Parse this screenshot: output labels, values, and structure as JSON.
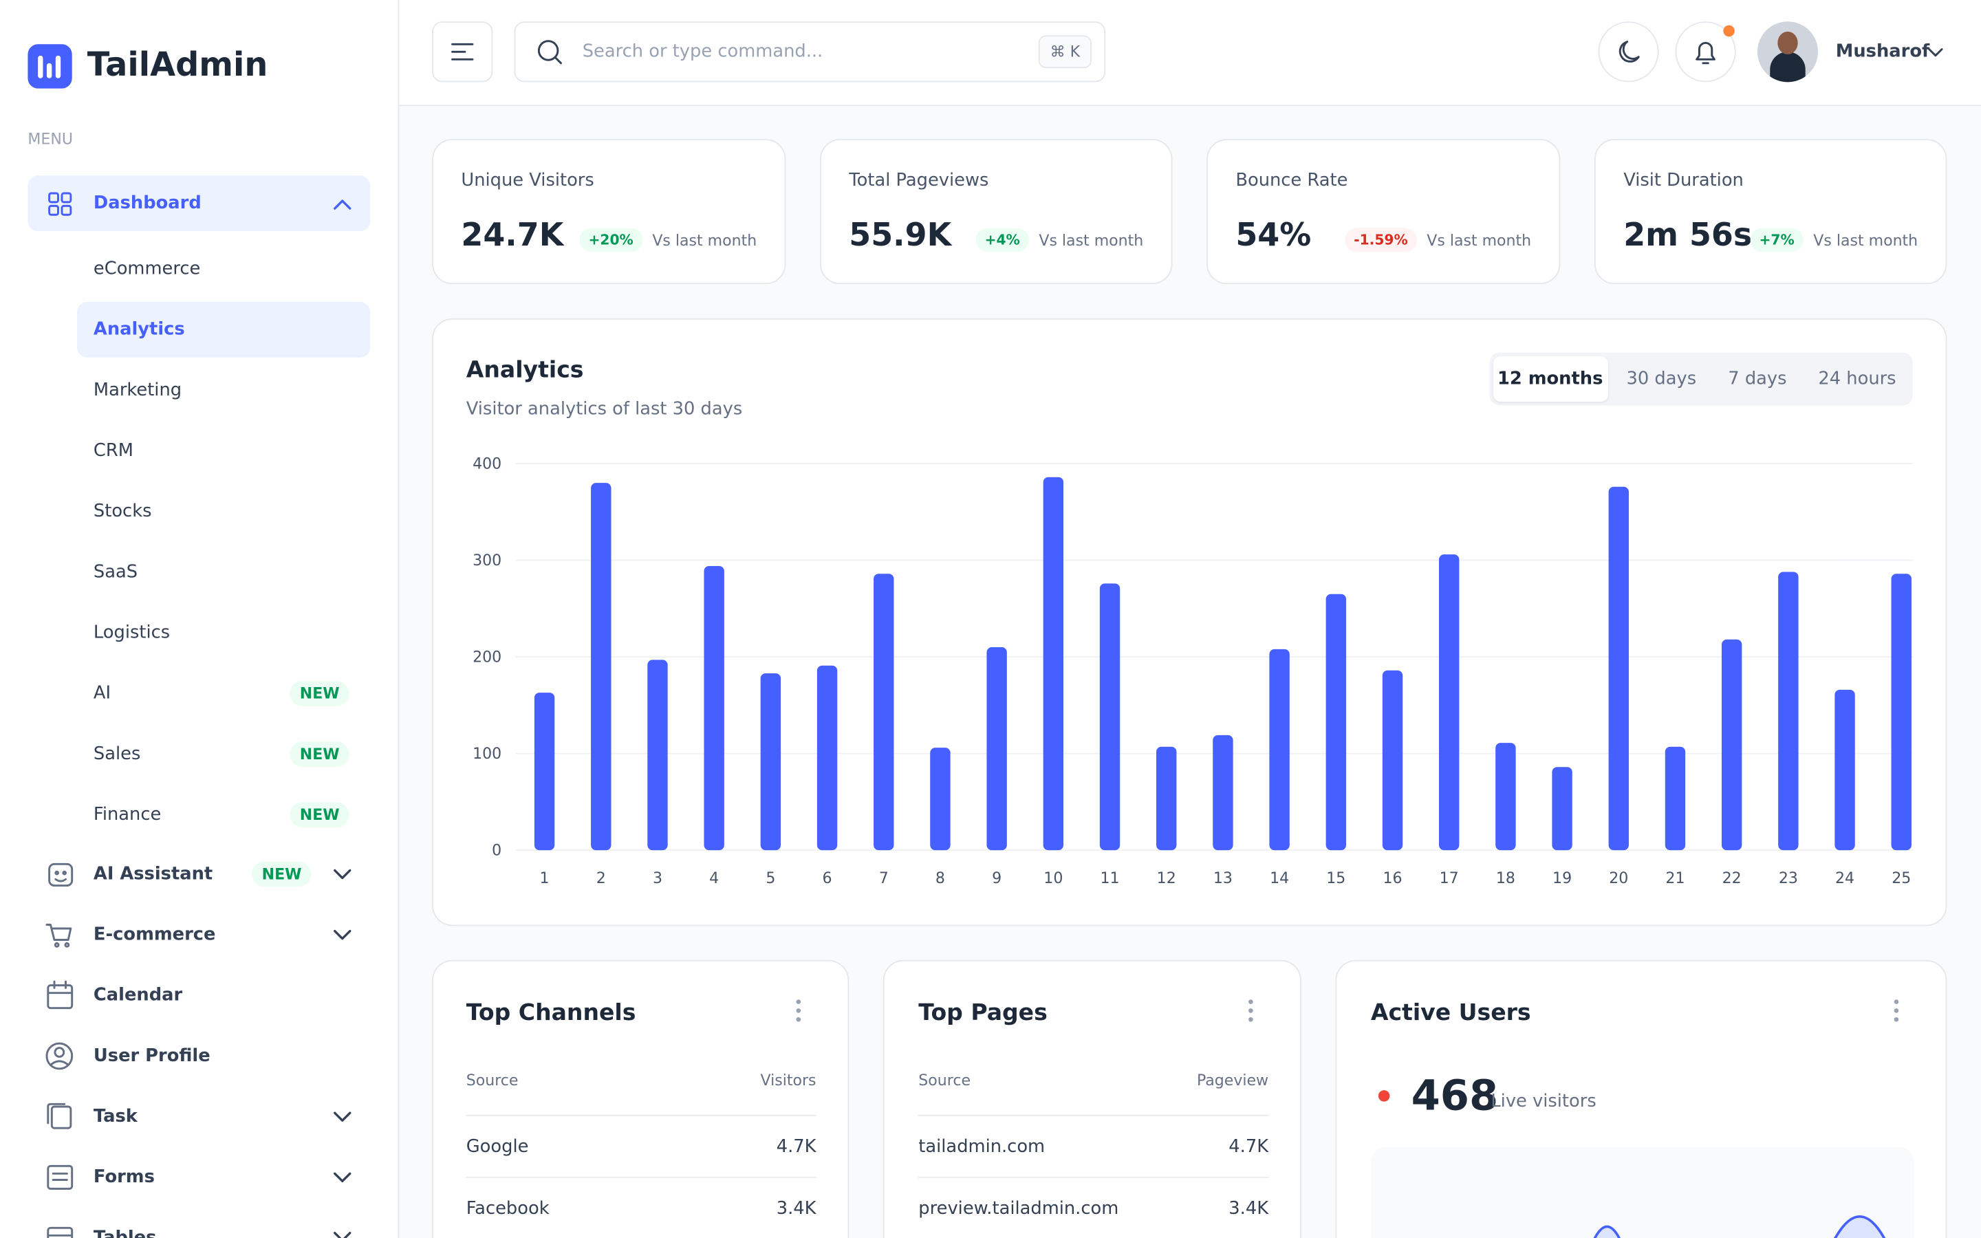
{
  "sidebar": {
    "logo": "TailAdmin",
    "menu_label": "MENU",
    "dashboard": "Dashboard",
    "submenu": [
      {
        "label": "eCommerce"
      },
      {
        "label": "Analytics"
      },
      {
        "label": "Marketing"
      },
      {
        "label": "CRM"
      },
      {
        "label": "Stocks"
      },
      {
        "label": "SaaS"
      },
      {
        "label": "Logistics"
      },
      {
        "label": "AI",
        "badge": "NEW"
      },
      {
        "label": "Sales",
        "badge": "NEW"
      },
      {
        "label": "Finance",
        "badge": "NEW"
      }
    ],
    "items": [
      {
        "label": "AI Assistant",
        "badge": "NEW"
      },
      {
        "label": "E-commerce"
      },
      {
        "label": "Calendar"
      },
      {
        "label": "User Profile"
      },
      {
        "label": "Task"
      },
      {
        "label": "Forms"
      },
      {
        "label": "Tables"
      }
    ]
  },
  "header": {
    "search_placeholder": "Search or type command...",
    "shortcut": "⌘ K",
    "user": "Musharof"
  },
  "stats": [
    {
      "label": "Unique Visitors",
      "value": "24.7K",
      "change": "+20%",
      "note": "Vs last month"
    },
    {
      "label": "Total Pageviews",
      "value": "55.9K",
      "change": "+4%",
      "note": "Vs last month"
    },
    {
      "label": "Bounce Rate",
      "value": "54%",
      "change": "-1.59%",
      "note": "Vs last month"
    },
    {
      "label": "Visit Duration",
      "value": "2m 56s",
      "change": "+7%",
      "note": "Vs last month"
    }
  ],
  "chart_data": {
    "type": "bar",
    "title": "Analytics",
    "subtitle": "Visitor analytics of last 30 days",
    "filters": [
      "12 months",
      "30 days",
      "7 days",
      "24 hours"
    ],
    "categories": [
      "1",
      "2",
      "3",
      "4",
      "5",
      "6",
      "7",
      "8",
      "9",
      "10",
      "11",
      "12",
      "13",
      "14",
      "15",
      "16",
      "17",
      "18",
      "19",
      "20",
      "21",
      "22",
      "23",
      "24",
      "25"
    ],
    "values": [
      163,
      380,
      197,
      294,
      183,
      191,
      286,
      106,
      210,
      386,
      276,
      107,
      119,
      208,
      265,
      186,
      306,
      111,
      86,
      376,
      107,
      218,
      288,
      166,
      286
    ],
    "color": "#465fff",
    "ylim": [
      0,
      400
    ],
    "yticks": [
      0,
      100,
      200,
      300,
      400
    ],
    "grid": true
  },
  "top_channels": {
    "title": "Top Channels",
    "columns": [
      "Source",
      "Visitors"
    ],
    "rows": [
      [
        "Google",
        "4.7K"
      ],
      [
        "Facebook",
        "3.4K"
      ]
    ]
  },
  "top_pages": {
    "title": "Top Pages",
    "columns": [
      "Source",
      "Pageview"
    ],
    "rows": [
      [
        "tailadmin.com",
        "4.7K"
      ],
      [
        "preview.tailadmin.com",
        "3.4K"
      ]
    ]
  },
  "active_users": {
    "title": "Active Users",
    "count": "468",
    "label": "Live visitors"
  }
}
